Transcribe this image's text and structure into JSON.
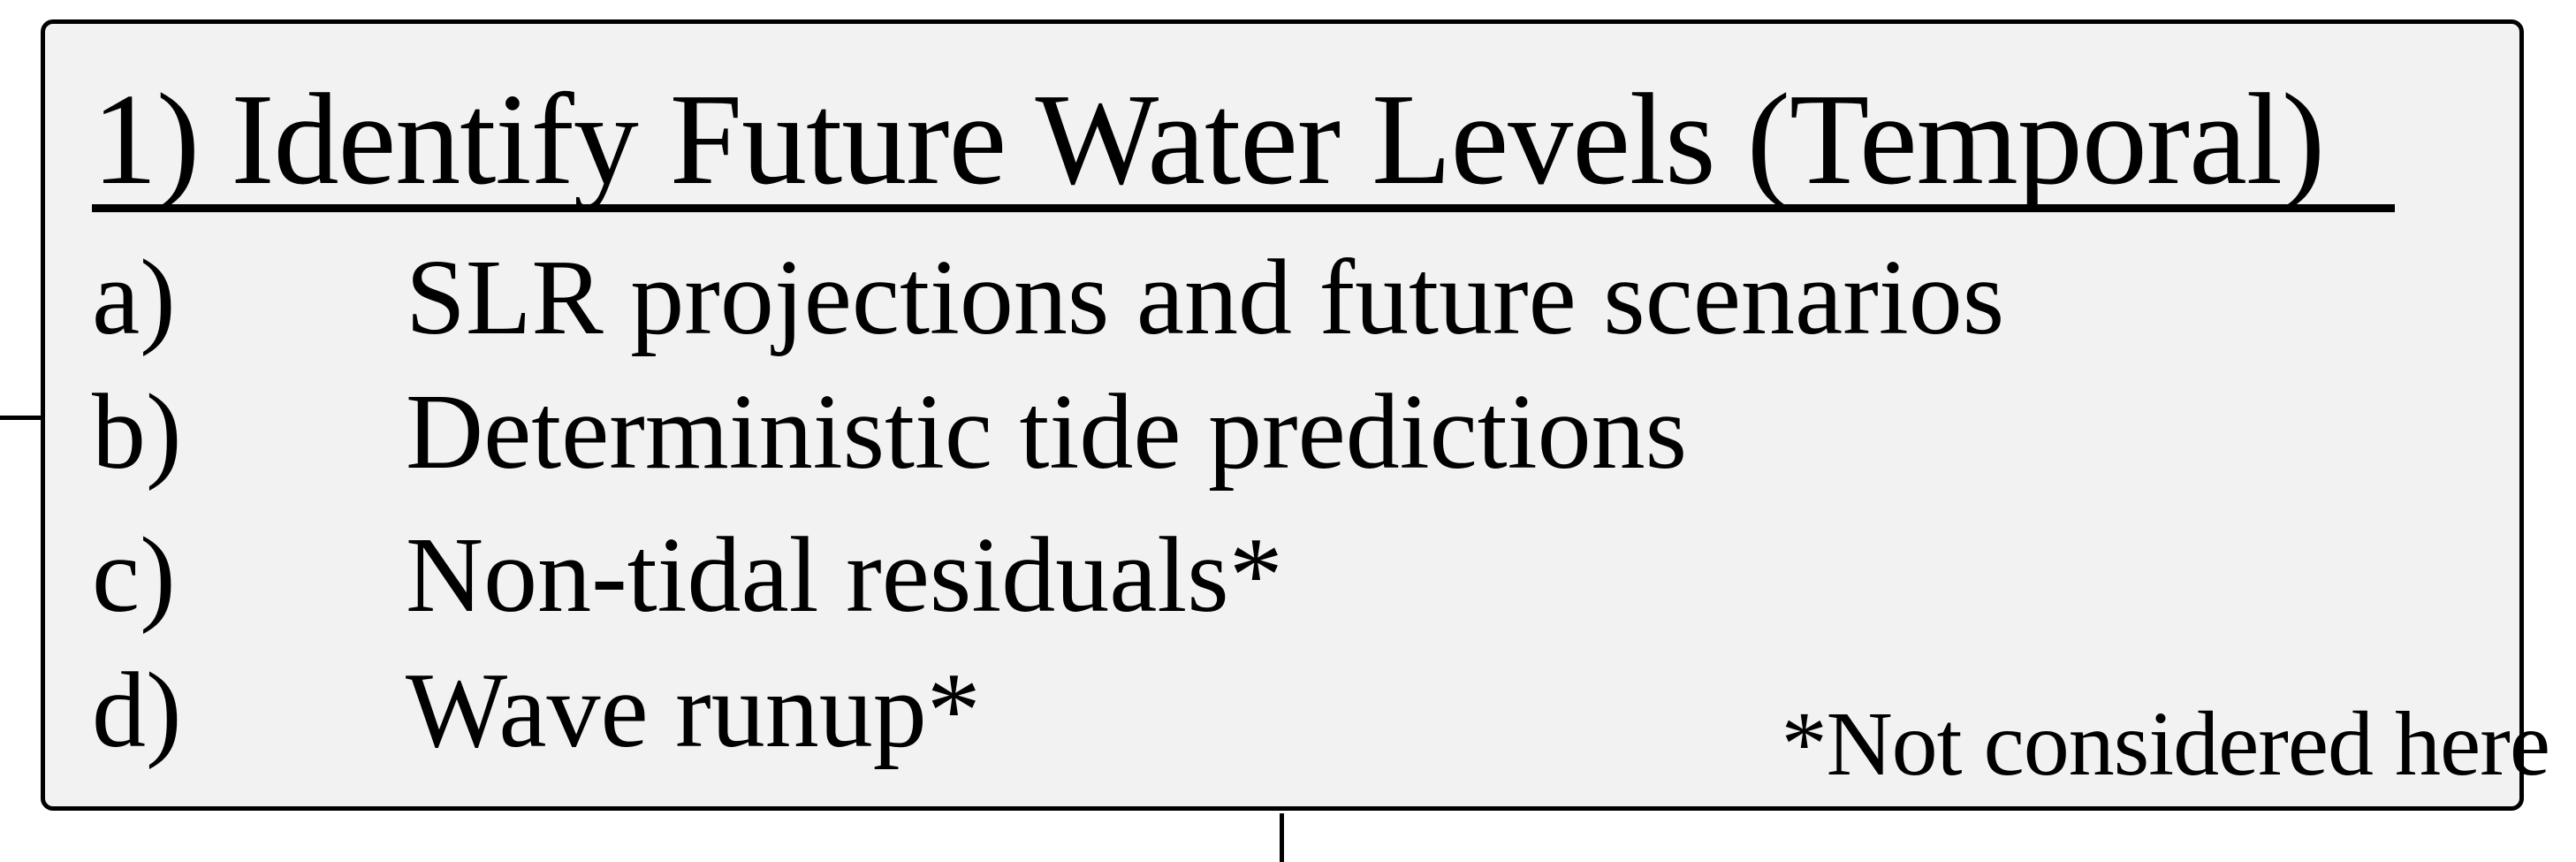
{
  "box": {
    "title": "1) Identify Future Water Levels (Temporal)",
    "items": [
      {
        "marker": "a)",
        "text": "SLR projections and future scenarios"
      },
      {
        "marker": "b)",
        "text": "Deterministic tide predictions"
      },
      {
        "marker": "c)",
        "text": "Non-tidal residuals*"
      },
      {
        "marker": "d)",
        "text": "Wave runup*"
      }
    ],
    "footnote": "*Not considered here"
  }
}
